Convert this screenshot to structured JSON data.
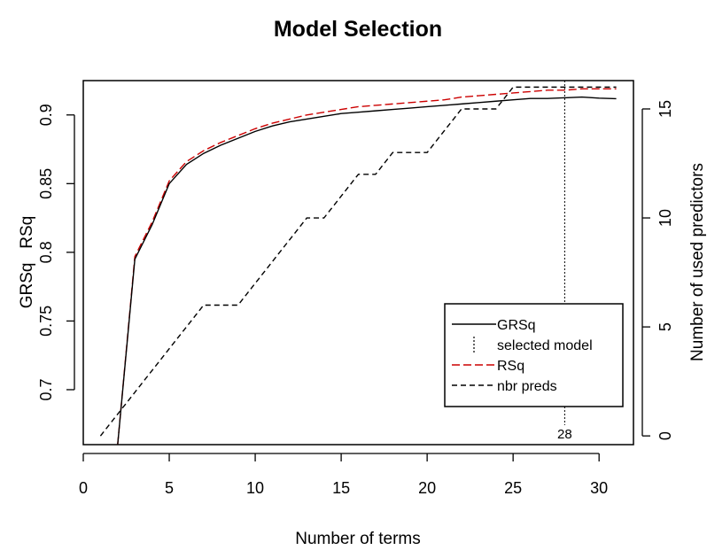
{
  "chart_data": {
    "type": "line",
    "title": "Model Selection",
    "xlabel": "Number of terms",
    "ylabel": "GRSq   RSq",
    "y2label": "Number of used predictors",
    "xlim": [
      0,
      32
    ],
    "ylim": [
      0.66,
      0.925
    ],
    "y2lim": [
      -0.4,
      16.3
    ],
    "x_ticks": [
      0,
      5,
      10,
      15,
      20,
      25,
      30
    ],
    "y_ticks": [
      0.7,
      0.75,
      0.8,
      0.85,
      0.9
    ],
    "y2_ticks": [
      0,
      5,
      10,
      15
    ],
    "grid": false,
    "legend_position": "bottom-right",
    "legend": [
      "GRSq",
      "selected model",
      "RSq",
      "nbr preds"
    ],
    "selected_model": {
      "x": 28,
      "label": "28"
    },
    "series": [
      {
        "name": "GRSq",
        "axis": "left",
        "color": "#000000",
        "style": "solid",
        "x": [
          2,
          3,
          4,
          5,
          6,
          7,
          8,
          9,
          10,
          11,
          12,
          13,
          14,
          15,
          16,
          17,
          18,
          19,
          20,
          21,
          22,
          23,
          24,
          25,
          26,
          27,
          28,
          29,
          30,
          31
        ],
        "y": [
          0.66,
          0.795,
          0.82,
          0.85,
          0.864,
          0.872,
          0.878,
          0.883,
          0.888,
          0.892,
          0.895,
          0.897,
          0.899,
          0.901,
          0.902,
          0.903,
          0.904,
          0.905,
          0.906,
          0.907,
          0.908,
          0.909,
          0.91,
          0.911,
          0.912,
          0.912,
          0.9125,
          0.913,
          0.9122,
          0.9118
        ]
      },
      {
        "name": "RSq",
        "axis": "left",
        "color": "#cc0000",
        "style": "dashed",
        "x": [
          2,
          3,
          4,
          5,
          6,
          7,
          8,
          9,
          10,
          11,
          12,
          13,
          14,
          15,
          16,
          17,
          18,
          19,
          20,
          21,
          22,
          23,
          24,
          25,
          26,
          27,
          28,
          29,
          30,
          31
        ],
        "y": [
          0.66,
          0.797,
          0.822,
          0.852,
          0.866,
          0.874,
          0.88,
          0.885,
          0.89,
          0.894,
          0.897,
          0.9,
          0.902,
          0.904,
          0.906,
          0.907,
          0.908,
          0.909,
          0.91,
          0.911,
          0.913,
          0.914,
          0.915,
          0.916,
          0.917,
          0.918,
          0.918,
          0.919,
          0.919,
          0.919
        ]
      },
      {
        "name": "nbr preds",
        "axis": "right",
        "color": "#000000",
        "style": "dashed",
        "x": [
          1,
          2,
          3,
          4,
          5,
          6,
          7,
          8,
          9,
          10,
          11,
          12,
          13,
          14,
          15,
          16,
          17,
          18,
          19,
          20,
          21,
          22,
          23,
          24,
          25,
          26,
          27,
          28,
          29,
          30,
          31
        ],
        "y": [
          0,
          1,
          2,
          3,
          4,
          5,
          6,
          6,
          6,
          7,
          8,
          9,
          10,
          10,
          11,
          12,
          12,
          13,
          13,
          13,
          14,
          15,
          15,
          15,
          16,
          16,
          16,
          16,
          16,
          16,
          16
        ]
      }
    ]
  }
}
